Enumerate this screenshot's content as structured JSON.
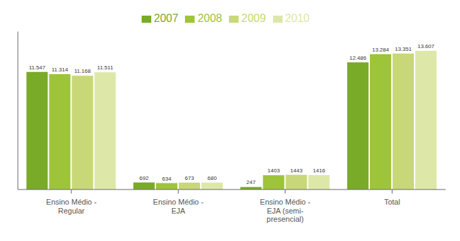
{
  "chart_data": {
    "type": "bar",
    "categories": [
      "Ensino Médio -\nRegular",
      "Ensino Médio -\nEJA",
      "Ensino Médio -\nEJA (semi-\npresencial)",
      "Total"
    ],
    "series": [
      {
        "name": "2007",
        "color": "#7aab28",
        "values": [
          11547,
          692,
          247,
          12486
        ],
        "value_labels": [
          "11.547",
          "692",
          "247",
          "12.486"
        ]
      },
      {
        "name": "2008",
        "color": "#9ec43a",
        "values": [
          11314,
          634,
          1403,
          13284
        ],
        "value_labels": [
          "11.314",
          "634",
          "1403",
          "13.284"
        ]
      },
      {
        "name": "2009",
        "color": "#c8d878",
        "values": [
          11168,
          673,
          1443,
          13351
        ],
        "value_labels": [
          "11.168",
          "673",
          "1443",
          "13.351"
        ]
      },
      {
        "name": "2010",
        "color": "#dde8a8",
        "values": [
          11511,
          680,
          1416,
          13607
        ],
        "value_labels": [
          "11.511",
          "680",
          "1416",
          "13.607"
        ]
      }
    ],
    "ylim": [
      0,
      15500
    ],
    "grid": false,
    "legend": "top",
    "data_labels": true,
    "tick_labels": "x"
  }
}
